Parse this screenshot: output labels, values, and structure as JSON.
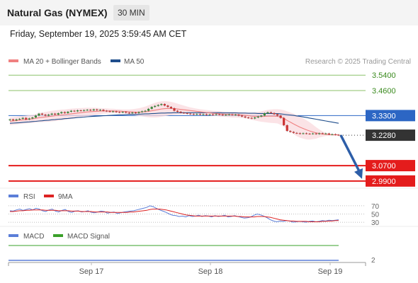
{
  "header": {
    "title": "Natural Gas (NYMEX)",
    "timeframe": "30 MIN",
    "datetime": "Friday, September 19, 2025 3:59:45 AM CET"
  },
  "colors": {
    "resistance": "#8cc26a",
    "pivot": "#2c66c4",
    "current": "#333333",
    "support": "#e41c1c",
    "ma20": "#f08080",
    "ma50": "#1f4e8c",
    "bollinger_fill": "#fadadd",
    "candle_up": "#3a8a3a",
    "candle_down": "#cc3333",
    "rsi": "#5b7ed8",
    "rsi_ma": "#dd2222",
    "macd": "#5b7ed8",
    "macd_signal": "#3aa02a",
    "arrow": "#2d5ea8"
  },
  "chart_data": [
    {
      "type": "candlestick",
      "legend": [
        {
          "label": "MA 20 + Bollinger Bands",
          "color": "#f08080"
        },
        {
          "label": "MA 50",
          "color": "#1f4e8c"
        }
      ],
      "credit": "Research © 2025 Trading Central",
      "ylim": [
        2.96,
        3.585
      ],
      "levels": [
        {
          "label": "3.5400",
          "value": 3.54,
          "kind": "resistance"
        },
        {
          "label": "3.4600",
          "value": 3.46,
          "kind": "resistance"
        },
        {
          "label": "3.3300",
          "value": 3.33,
          "kind": "pivot"
        },
        {
          "label": "3.2280",
          "value": 3.228,
          "kind": "current"
        },
        {
          "label": "3.0700",
          "value": 3.07,
          "kind": "support"
        },
        {
          "label": "2.9900",
          "value": 2.99,
          "kind": "support"
        }
      ],
      "x_ticks": [
        "Sep 17",
        "Sep 18",
        "Sep 19"
      ],
      "close": [
        3.31,
        3.305,
        3.31,
        3.313,
        3.318,
        3.31,
        3.315,
        3.32,
        3.33,
        3.34,
        3.335,
        3.33,
        3.335,
        3.34,
        3.335,
        3.342,
        3.348,
        3.343,
        3.35,
        3.355,
        3.352,
        3.357,
        3.355,
        3.358,
        3.36,
        3.357,
        3.362,
        3.358,
        3.36,
        3.355,
        3.353,
        3.35,
        3.352,
        3.348,
        3.346,
        3.349,
        3.345,
        3.342,
        3.346,
        3.343,
        3.348,
        3.352,
        3.355,
        3.365,
        3.375,
        3.38,
        3.385,
        3.39,
        3.382,
        3.375,
        3.368,
        3.355,
        3.35,
        3.345,
        3.343,
        3.34,
        3.338,
        3.336,
        3.338,
        3.335,
        3.337,
        3.333,
        3.336,
        3.334,
        3.337,
        3.335,
        3.332,
        3.334,
        3.336,
        3.333,
        3.335,
        3.33,
        3.325,
        3.32,
        3.318,
        3.315,
        3.32,
        3.325,
        3.33,
        3.342,
        3.347,
        3.343,
        3.337,
        3.33,
        3.318,
        3.28,
        3.25,
        3.245,
        3.24,
        3.238,
        3.236,
        3.238,
        3.236,
        3.235,
        3.237,
        3.234,
        3.238,
        3.236,
        3.237,
        3.232,
        3.233,
        3.23,
        3.228
      ],
      "ma20": [
        3.3,
        3.302,
        3.304,
        3.306,
        3.308,
        3.309,
        3.311,
        3.313,
        3.316,
        3.319,
        3.321,
        3.323,
        3.325,
        3.327,
        3.329,
        3.331,
        3.333,
        3.335,
        3.337,
        3.339,
        3.341,
        3.343,
        3.345,
        3.347,
        3.349,
        3.35,
        3.351,
        3.352,
        3.353,
        3.354,
        3.354,
        3.354,
        3.354,
        3.353,
        3.353,
        3.352,
        3.351,
        3.35,
        3.349,
        3.348,
        3.348,
        3.349,
        3.35,
        3.352,
        3.355,
        3.358,
        3.361,
        3.364,
        3.366,
        3.367,
        3.367,
        3.366,
        3.364,
        3.362,
        3.36,
        3.358,
        3.356,
        3.354,
        3.352,
        3.35,
        3.348,
        3.346,
        3.344,
        3.342,
        3.341,
        3.339,
        3.338,
        3.337,
        3.336,
        3.335,
        3.335,
        3.334,
        3.333,
        3.331,
        3.329,
        3.327,
        3.326,
        3.325,
        3.325,
        3.326,
        3.327,
        3.327,
        3.327,
        3.326,
        3.322,
        3.315,
        3.305,
        3.296,
        3.287,
        3.278,
        3.27,
        3.263,
        3.256,
        3.25,
        3.245,
        3.24,
        3.237,
        3.234,
        3.232,
        3.231,
        3.23,
        3.23,
        3.23
      ],
      "bb_upper": [
        3.32,
        3.322,
        3.324,
        3.326,
        3.328,
        3.33,
        3.332,
        3.334,
        3.338,
        3.343,
        3.346,
        3.349,
        3.352,
        3.355,
        3.357,
        3.359,
        3.361,
        3.362,
        3.364,
        3.366,
        3.367,
        3.368,
        3.369,
        3.37,
        3.371,
        3.371,
        3.371,
        3.37,
        3.369,
        3.368,
        3.367,
        3.366,
        3.365,
        3.364,
        3.363,
        3.362,
        3.362,
        3.362,
        3.363,
        3.365,
        3.368,
        3.372,
        3.377,
        3.383,
        3.39,
        3.396,
        3.401,
        3.404,
        3.405,
        3.404,
        3.401,
        3.397,
        3.392,
        3.387,
        3.382,
        3.377,
        3.373,
        3.369,
        3.366,
        3.363,
        3.361,
        3.359,
        3.357,
        3.355,
        3.354,
        3.353,
        3.352,
        3.351,
        3.35,
        3.35,
        3.35,
        3.349,
        3.348,
        3.347,
        3.346,
        3.346,
        3.347,
        3.349,
        3.352,
        3.356,
        3.36,
        3.362,
        3.363,
        3.363,
        3.362,
        3.358,
        3.352,
        3.346,
        3.34,
        3.333,
        3.325,
        3.316,
        3.306,
        3.295,
        3.283,
        3.27,
        3.258,
        3.248,
        3.24,
        3.236,
        3.234,
        3.233,
        3.233
      ],
      "bb_lower": [
        3.28,
        3.282,
        3.284,
        3.286,
        3.288,
        3.289,
        3.29,
        3.292,
        3.294,
        3.295,
        3.296,
        3.297,
        3.298,
        3.299,
        3.301,
        3.303,
        3.305,
        3.308,
        3.31,
        3.312,
        3.315,
        3.318,
        3.321,
        3.324,
        3.327,
        3.329,
        3.331,
        3.334,
        3.337,
        3.34,
        3.341,
        3.342,
        3.343,
        3.342,
        3.343,
        3.342,
        3.34,
        3.338,
        3.335,
        3.331,
        3.328,
        3.326,
        3.323,
        3.321,
        3.32,
        3.32,
        3.321,
        3.324,
        3.327,
        3.33,
        3.333,
        3.335,
        3.336,
        3.337,
        3.338,
        3.339,
        3.339,
        3.339,
        3.338,
        3.337,
        3.335,
        3.333,
        3.331,
        3.329,
        3.328,
        3.325,
        3.324,
        3.323,
        3.322,
        3.32,
        3.32,
        3.319,
        3.318,
        3.315,
        3.312,
        3.308,
        3.305,
        3.301,
        3.298,
        3.296,
        3.294,
        3.292,
        3.291,
        3.289,
        3.282,
        3.272,
        3.258,
        3.246,
        3.234,
        3.223,
        3.215,
        3.21,
        3.206,
        3.205,
        3.207,
        3.21,
        3.216,
        3.22,
        3.224,
        3.226,
        3.226,
        3.227,
        3.227
      ],
      "ma50": [
        3.29,
        3.291,
        3.292,
        3.293,
        3.295,
        3.296,
        3.297,
        3.299,
        3.3,
        3.302,
        3.303,
        3.305,
        3.306,
        3.308,
        3.309,
        3.311,
        3.312,
        3.314,
        3.315,
        3.317,
        3.318,
        3.32,
        3.321,
        3.322,
        3.324,
        3.325,
        3.326,
        3.327,
        3.328,
        3.329,
        3.33,
        3.331,
        3.332,
        3.333,
        3.334,
        3.334,
        3.335,
        3.336,
        3.336,
        3.337,
        3.337,
        3.338,
        3.339,
        3.339,
        3.34,
        3.341,
        3.342,
        3.343,
        3.343,
        3.344,
        3.344,
        3.345,
        3.345,
        3.345,
        3.345,
        3.345,
        3.345,
        3.345,
        3.345,
        3.345,
        3.345,
        3.345,
        3.345,
        3.345,
        3.345,
        3.345,
        3.344,
        3.344,
        3.344,
        3.344,
        3.344,
        3.343,
        3.343,
        3.343,
        3.342,
        3.342,
        3.342,
        3.341,
        3.341,
        3.341,
        3.341,
        3.341,
        3.34,
        3.34,
        3.339,
        3.337,
        3.335,
        3.333,
        3.331,
        3.328,
        3.326,
        3.323,
        3.32,
        3.317,
        3.314,
        3.311,
        3.308,
        3.305,
        3.302,
        3.299,
        3.296,
        3.293,
        3.29
      ],
      "forecast": {
        "from": 3.228,
        "to": 2.99
      }
    },
    {
      "type": "line",
      "legend": [
        {
          "label": "RSI",
          "color": "#5b7ed8"
        },
        {
          "label": "9MA",
          "color": "#dd2222"
        }
      ],
      "ylim": [
        25,
        75
      ],
      "y_ticks": [
        "70",
        "50",
        "30"
      ],
      "rsi": [
        58,
        57,
        60,
        62,
        59,
        61,
        63,
        60,
        64,
        62,
        58,
        56,
        60,
        62,
        57,
        55,
        59,
        61,
        56,
        54,
        57,
        58,
        55,
        56,
        58,
        54,
        53,
        55,
        57,
        56,
        52,
        54,
        55,
        51,
        53,
        55,
        56,
        57,
        58,
        60,
        62,
        64,
        66,
        70,
        68,
        64,
        60,
        57,
        54,
        50,
        47,
        46,
        44,
        45,
        43,
        46,
        44,
        45,
        47,
        44,
        46,
        45,
        43,
        46,
        44,
        45,
        47,
        43,
        44,
        46,
        44,
        42,
        40,
        41,
        43,
        47,
        50,
        48,
        45,
        41,
        36,
        33,
        31,
        33,
        32,
        34,
        33,
        30,
        31,
        32,
        31,
        30,
        32,
        33,
        31,
        32,
        34,
        33,
        35,
        34,
        35,
        36
      ],
      "rsi_ma": [
        56,
        56,
        57,
        58,
        58,
        59,
        59,
        60,
        60,
        60,
        60,
        59,
        59,
        59,
        59,
        58,
        58,
        58,
        58,
        57,
        57,
        57,
        56,
        56,
        56,
        56,
        55,
        55,
        55,
        55,
        55,
        54,
        54,
        54,
        54,
        54,
        54,
        55,
        55,
        56,
        57,
        58,
        59,
        61,
        62,
        62,
        62,
        61,
        60,
        58,
        56,
        54,
        52,
        50,
        48,
        47,
        46,
        45,
        45,
        45,
        45,
        45,
        45,
        45,
        45,
        45,
        45,
        45,
        45,
        45,
        44,
        44,
        43,
        43,
        43,
        43,
        44,
        44,
        44,
        43,
        42,
        40,
        38,
        36,
        35,
        34,
        33,
        33,
        32,
        32,
        32,
        32,
        31,
        31,
        31,
        31,
        32,
        32,
        33,
        33,
        34,
        34
      ]
    },
    {
      "type": "line",
      "legend": [
        {
          "label": "MACD",
          "color": "#5b7ed8"
        },
        {
          "label": "MACD Signal",
          "color": "#3aa02a"
        }
      ],
      "y_ticks": [
        "2"
      ],
      "macd_level": 2,
      "signal_level": 2.6
    }
  ]
}
